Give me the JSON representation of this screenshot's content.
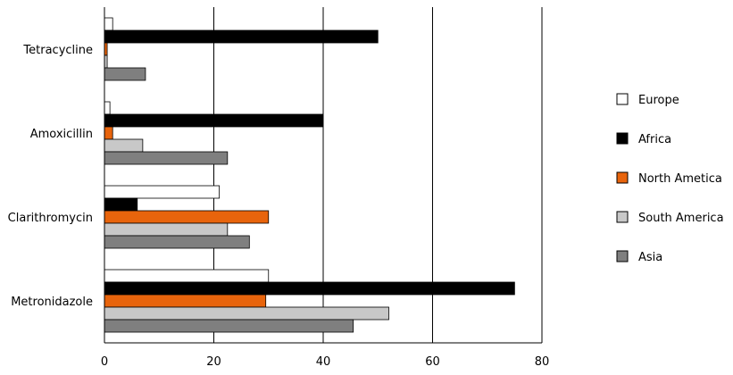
{
  "chart_data": {
    "type": "bar",
    "orientation": "horizontal",
    "categories": [
      "Tetracycline",
      "Amoxicillin",
      "Clarithromycin",
      "Metronidazole"
    ],
    "series": [
      {
        "name": "Europe",
        "color": "#ffffff",
        "values": [
          1.5,
          1,
          21,
          30
        ]
      },
      {
        "name": "Africa",
        "color": "#000000",
        "values": [
          50,
          40,
          6,
          75
        ]
      },
      {
        "name": "North Ametica",
        "color": "#e8640c",
        "values": [
          0.5,
          1.5,
          30,
          29.5
        ]
      },
      {
        "name": "South America",
        "color": "#c8c8c8",
        "values": [
          0.5,
          7,
          22.5,
          52
        ]
      },
      {
        "name": "Asia",
        "color": "#7f7f7f",
        "values": [
          7.5,
          22.5,
          26.5,
          45.5
        ]
      }
    ],
    "xlim": [
      0,
      80
    ],
    "xticks": [
      0,
      20,
      40,
      60,
      80
    ],
    "grid": true,
    "legend_position": "right"
  }
}
